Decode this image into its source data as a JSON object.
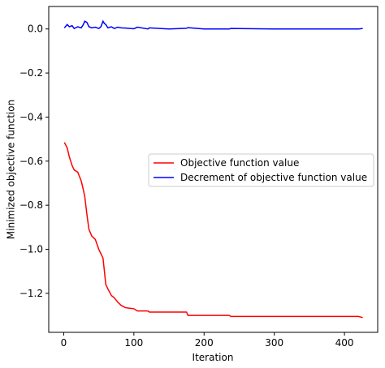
{
  "chart_data": {
    "type": "line",
    "xlabel": "Iteration",
    "ylabel": "Minimized objective function",
    "x": [
      1,
      5,
      8,
      12,
      15,
      20,
      25,
      28,
      30,
      33,
      36,
      40,
      45,
      50,
      53,
      56,
      58,
      60,
      63,
      68,
      72,
      77,
      82,
      88,
      95,
      100,
      105,
      120,
      122,
      150,
      175,
      177,
      200,
      236,
      238,
      300,
      400,
      420,
      426
    ],
    "series": [
      {
        "name": "Objective function value",
        "color": "#ff0000",
        "values": [
          -0.515,
          -0.54,
          -0.58,
          -0.62,
          -0.64,
          -0.65,
          -0.69,
          -0.73,
          -0.76,
          -0.84,
          -0.91,
          -0.94,
          -0.955,
          -1.0,
          -1.02,
          -1.04,
          -1.1,
          -1.16,
          -1.18,
          -1.21,
          -1.22,
          -1.24,
          -1.255,
          -1.265,
          -1.268,
          -1.27,
          -1.28,
          -1.28,
          -1.285,
          -1.285,
          -1.285,
          -1.3,
          -1.3,
          -1.3,
          -1.305,
          -1.305,
          -1.305,
          -1.305,
          -1.31
        ]
      },
      {
        "name": "Decrement of objective function value",
        "color": "#0000ff",
        "values": [
          0.005,
          0.02,
          0.01,
          0.015,
          0.002,
          0.01,
          0.005,
          0.02,
          0.035,
          0.03,
          0.01,
          0.005,
          0.008,
          0.002,
          0.01,
          0.035,
          0.025,
          0.02,
          0.005,
          0.01,
          0.002,
          0.008,
          0.005,
          0.004,
          0.002,
          0.001,
          0.008,
          0,
          0.005,
          0,
          0.003,
          0.006,
          0,
          0,
          0.002,
          0,
          0,
          0,
          0.002
        ]
      }
    ],
    "xlim": [
      -21.3,
      447.3
    ],
    "xticks": [
      0,
      100,
      200,
      300,
      400
    ],
    "ylim": [
      -1.377,
      0.102
    ],
    "yticks": [
      {
        "value": 0,
        "label": "0.0"
      },
      {
        "value": -0.2,
        "label": "−0.2"
      },
      {
        "value": -0.4,
        "label": "−0.4"
      },
      {
        "value": -0.6,
        "label": "−0.6"
      },
      {
        "value": -0.8,
        "label": "−0.8"
      },
      {
        "value": -1.0,
        "label": "−1.0"
      },
      {
        "value": -1.2,
        "label": "−1.2"
      }
    ],
    "grid": false,
    "legend": "center right"
  }
}
